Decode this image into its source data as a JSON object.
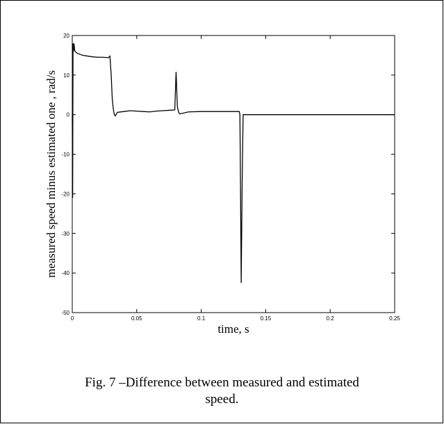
{
  "figure": {
    "caption_line1": "Fig. 7 –Difference between measured and estimated",
    "caption_line2": "speed."
  },
  "chart_data": {
    "type": "line",
    "title": "",
    "xlabel": "time, s",
    "ylabel": "measured speed minus estimated one , rad/s",
    "xlim": [
      0,
      0.25
    ],
    "ylim": [
      -50,
      20
    ],
    "xticks": [
      0,
      0.05,
      0.1,
      0.15,
      0.2,
      0.25
    ],
    "xtick_labels": [
      "0",
      "0.05",
      "0.1",
      "0.15",
      "0.2",
      "0.25"
    ],
    "yticks": [
      20,
      10,
      0,
      -10,
      -20,
      -30,
      -40,
      -50
    ],
    "ytick_labels": [
      "20",
      "10",
      "0",
      "-10",
      "-20",
      "-30",
      "-40",
      "-50"
    ],
    "grid": false,
    "line_color": "#000000",
    "series": [
      {
        "x": [
          0,
          0.0003,
          0.0006,
          0.0009,
          0.0013,
          0.002,
          0.004,
          0.008,
          0.012,
          0.016,
          0.02,
          0.024,
          0.028,
          0.0292,
          0.0302,
          0.031,
          0.0318,
          0.0326,
          0.0334,
          0.035,
          0.04,
          0.045,
          0.05,
          0.055,
          0.06,
          0.065,
          0.07,
          0.075,
          0.0795,
          0.0805,
          0.0815,
          0.0825,
          0.0835,
          0.09,
          0.1,
          0.11,
          0.12,
          0.1295,
          0.13,
          0.1305,
          0.131,
          0.1318,
          0.1325,
          0.14,
          0.15,
          0.2,
          0.25
        ],
        "y": [
          0,
          -21,
          18,
          16,
          18,
          16,
          15.5,
          15,
          14.8,
          14.6,
          14.5,
          14.5,
          14.4,
          14.8,
          10,
          4,
          1.5,
          0,
          -0.3,
          0.6,
          0.8,
          1.0,
          0.9,
          0.8,
          0.7,
          0.9,
          1.0,
          1.1,
          1.2,
          10.8,
          2,
          0.6,
          0.2,
          0.7,
          0.8,
          0.8,
          0.8,
          0.8,
          0,
          -20,
          -42.5,
          -15,
          0,
          0,
          0,
          0,
          0
        ]
      }
    ]
  }
}
